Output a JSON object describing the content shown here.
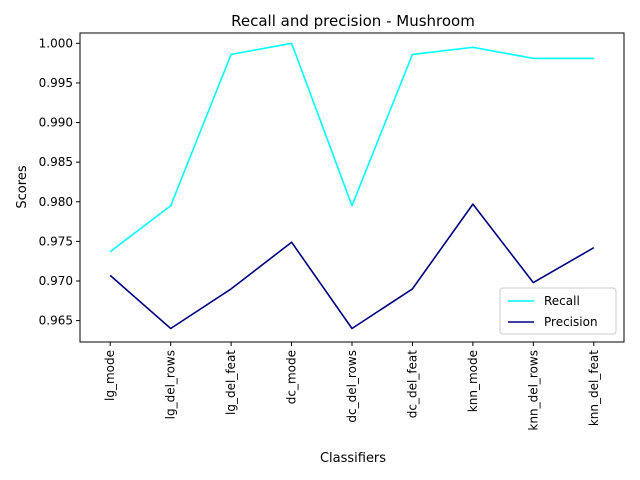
{
  "chart_data": {
    "type": "line",
    "title": "Recall and precision - Mushroom",
    "xlabel": "Classifiers",
    "ylabel": "Scores",
    "categories": [
      "lg_mode",
      "lg_del_rows",
      "lg_del_feat",
      "dc_mode",
      "dc_del_rows",
      "dc_del_feat",
      "knn_mode",
      "knn_del_rows",
      "knn_del_feat"
    ],
    "ylim": [
      0.9623,
      1.0013
    ],
    "yticks": [
      0.965,
      0.97,
      0.975,
      0.98,
      0.985,
      0.99,
      0.995,
      1.0
    ],
    "ytick_labels": [
      "0.965",
      "0.970",
      "0.975",
      "0.980",
      "0.985",
      "0.990",
      "0.995",
      "1.000"
    ],
    "series": [
      {
        "name": "Recall",
        "color": "#00ffff",
        "values": [
          0.9737,
          0.9795,
          0.9986,
          1.0,
          0.9795,
          0.9986,
          0.9995,
          0.9981,
          0.9981
        ]
      },
      {
        "name": "Precision",
        "color": "#000080",
        "values": [
          0.9707,
          0.964,
          0.969,
          0.9749,
          0.964,
          0.969,
          0.9797,
          0.9698,
          0.9742
        ]
      }
    ],
    "legend": {
      "position": "lower right"
    },
    "grid": false
  }
}
